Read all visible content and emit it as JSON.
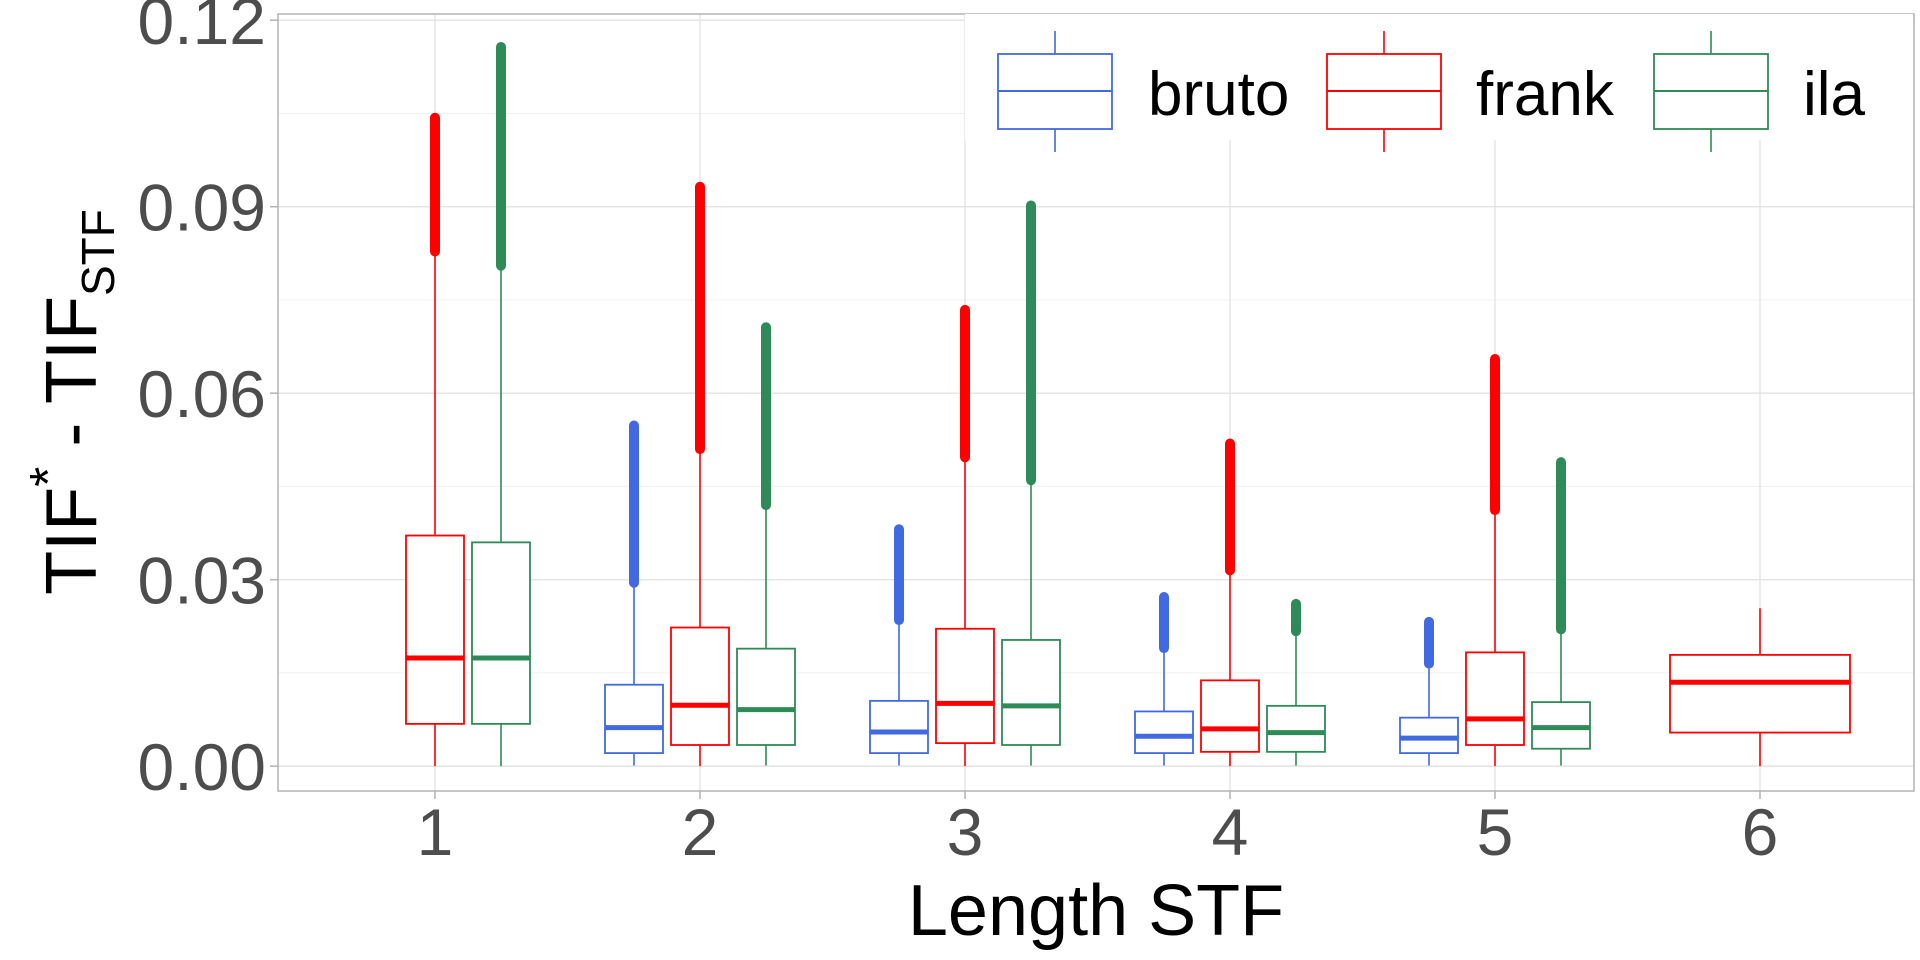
{
  "chart_data": {
    "type": "boxplot",
    "xlabel": "Length STF",
    "ylabel": {
      "base": "TIF",
      "sup": "*",
      "mid": " - TIF",
      "sub": "STF"
    },
    "categories": [
      "1",
      "2",
      "3",
      "4",
      "5",
      "6"
    ],
    "ylim": [
      -0.004,
      0.121
    ],
    "yticks": [
      0.0,
      0.03,
      0.06,
      0.09,
      0.12
    ],
    "ytick_labels": [
      "0.00",
      "0.03",
      "0.06",
      "0.09",
      "0.12"
    ],
    "grid": true,
    "legend_position": "top-right",
    "series": [
      {
        "name": "bruto",
        "color": "#4169E1",
        "boxes": [
          {
            "category": "2",
            "lower_whisker": 0.0001,
            "q1": 0.0021,
            "median": 0.0062,
            "q3": 0.0131,
            "upper_whisker": 0.029,
            "outlier_min": 0.0295,
            "outlier_max": 0.0548
          },
          {
            "category": "3",
            "lower_whisker": 0.0001,
            "q1": 0.0021,
            "median": 0.0055,
            "q3": 0.0105,
            "upper_whisker": 0.023,
            "outlier_min": 0.0235,
            "outlier_max": 0.0381
          },
          {
            "category": "4",
            "lower_whisker": 0.0001,
            "q1": 0.0021,
            "median": 0.0048,
            "q3": 0.0088,
            "upper_whisker": 0.0185,
            "outlier_min": 0.019,
            "outlier_max": 0.0272
          },
          {
            "category": "5",
            "lower_whisker": 0.0001,
            "q1": 0.0021,
            "median": 0.0045,
            "q3": 0.0078,
            "upper_whisker": 0.016,
            "outlier_min": 0.0165,
            "outlier_max": 0.0232
          }
        ]
      },
      {
        "name": "frank",
        "color": "#FF0000",
        "boxes": [
          {
            "category": "1",
            "lower_whisker": 0.0,
            "q1": 0.0068,
            "median": 0.0174,
            "q3": 0.0371,
            "upper_whisker": 0.0822,
            "outlier_min": 0.0828,
            "outlier_max": 0.1043
          },
          {
            "category": "2",
            "lower_whisker": 0.0,
            "q1": 0.0034,
            "median": 0.0098,
            "q3": 0.0223,
            "upper_whisker": 0.0505,
            "outlier_min": 0.051,
            "outlier_max": 0.0932
          },
          {
            "category": "3",
            "lower_whisker": 0.0,
            "q1": 0.0037,
            "median": 0.0101,
            "q3": 0.0221,
            "upper_whisker": 0.0492,
            "outlier_min": 0.0497,
            "outlier_max": 0.0734
          },
          {
            "category": "4",
            "lower_whisker": 0.0,
            "q1": 0.0023,
            "median": 0.006,
            "q3": 0.0138,
            "upper_whisker": 0.031,
            "outlier_min": 0.0315,
            "outlier_max": 0.0519
          },
          {
            "category": "5",
            "lower_whisker": 0.0,
            "q1": 0.0034,
            "median": 0.0076,
            "q3": 0.0183,
            "upper_whisker": 0.0407,
            "outlier_min": 0.0412,
            "outlier_max": 0.0655
          },
          {
            "category": "6",
            "lower_whisker": 0.0,
            "q1": 0.0054,
            "median": 0.0135,
            "q3": 0.0179,
            "upper_whisker": 0.0254
          }
        ]
      },
      {
        "name": "ila",
        "color": "#2E8B57",
        "boxes": [
          {
            "category": "1",
            "lower_whisker": 0.0,
            "q1": 0.0068,
            "median": 0.0174,
            "q3": 0.036,
            "upper_whisker": 0.08,
            "outlier_min": 0.0805,
            "outlier_max": 0.1157
          },
          {
            "category": "2",
            "lower_whisker": 0.0001,
            "q1": 0.0034,
            "median": 0.0091,
            "q3": 0.0189,
            "upper_whisker": 0.0415,
            "outlier_min": 0.042,
            "outlier_max": 0.0706
          },
          {
            "category": "3",
            "lower_whisker": 0.0001,
            "q1": 0.0034,
            "median": 0.0097,
            "q3": 0.0203,
            "upper_whisker": 0.0455,
            "outlier_min": 0.046,
            "outlier_max": 0.0902
          },
          {
            "category": "4",
            "lower_whisker": 0.0001,
            "q1": 0.0023,
            "median": 0.0054,
            "q3": 0.0097,
            "upper_whisker": 0.0212,
            "outlier_min": 0.0217,
            "outlier_max": 0.0261
          },
          {
            "category": "5",
            "lower_whisker": 0.0001,
            "q1": 0.0028,
            "median": 0.0062,
            "q3": 0.0103,
            "upper_whisker": 0.0215,
            "outlier_min": 0.022,
            "outlier_max": 0.0489
          }
        ]
      }
    ]
  }
}
